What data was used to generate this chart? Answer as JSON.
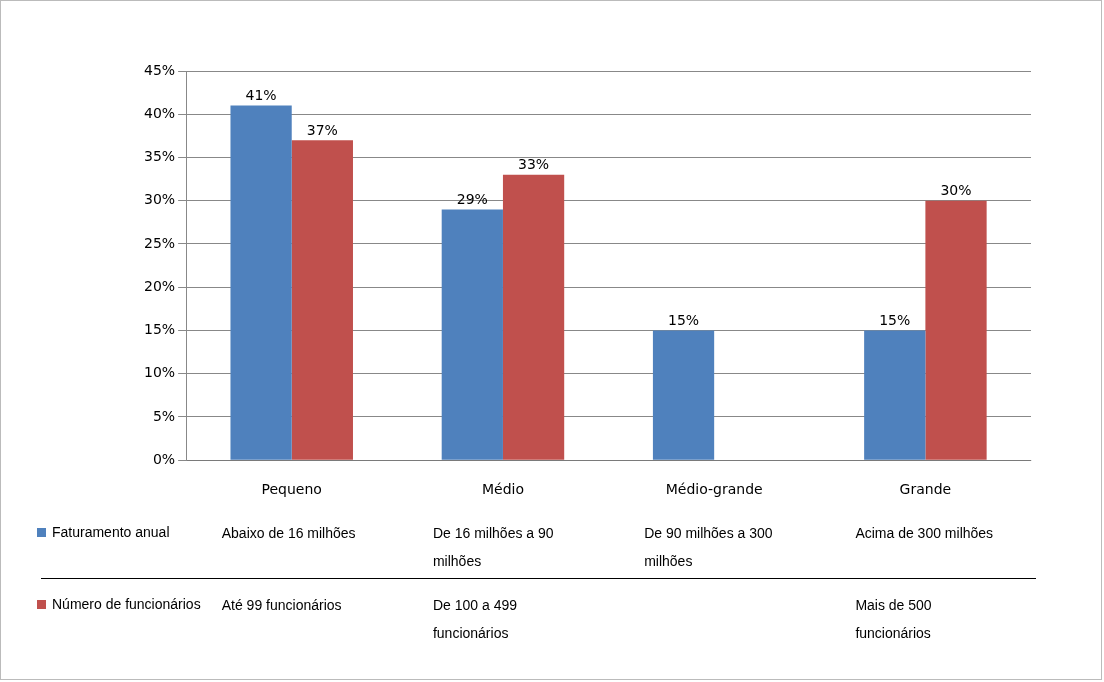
{
  "chart_data": {
    "type": "bar",
    "categories": [
      "Pequeno",
      "Médio",
      "Médio-grande",
      "Grande"
    ],
    "series": [
      {
        "name": "Faturamento anual",
        "color": "#4f81bd",
        "values": [
          41,
          29,
          15,
          15
        ],
        "value_labels": [
          "41%",
          "29%",
          "15%",
          "15%"
        ]
      },
      {
        "name": "Número de funcionários",
        "color": "#c0504d",
        "values": [
          37,
          33,
          null,
          30
        ],
        "value_labels": [
          "37%",
          "33%",
          null,
          "30%"
        ]
      }
    ],
    "ylim": [
      0,
      45
    ],
    "yticks": [
      {
        "value": 0,
        "label": "0%"
      },
      {
        "value": 5,
        "label": "5%"
      },
      {
        "value": 10,
        "label": "10%"
      },
      {
        "value": 15,
        "label": "15%"
      },
      {
        "value": 20,
        "label": "20%"
      },
      {
        "value": 25,
        "label": "25%"
      },
      {
        "value": 30,
        "label": "30%"
      },
      {
        "value": 35,
        "label": "35%"
      },
      {
        "value": 40,
        "label": "40%"
      },
      {
        "value": 45,
        "label": "45%"
      }
    ],
    "grid": "y",
    "legend": "bottom left",
    "annotations": [
      "Abaixo de 16 milhões",
      "De 16 milhões a 90 milhões",
      "De 90 milhões a 300 milhões",
      "Acima de 300 milhões",
      "Até 99 funcionários",
      "De 100 a 499 funcionários",
      "Mais de 500 funcionários"
    ]
  }
}
